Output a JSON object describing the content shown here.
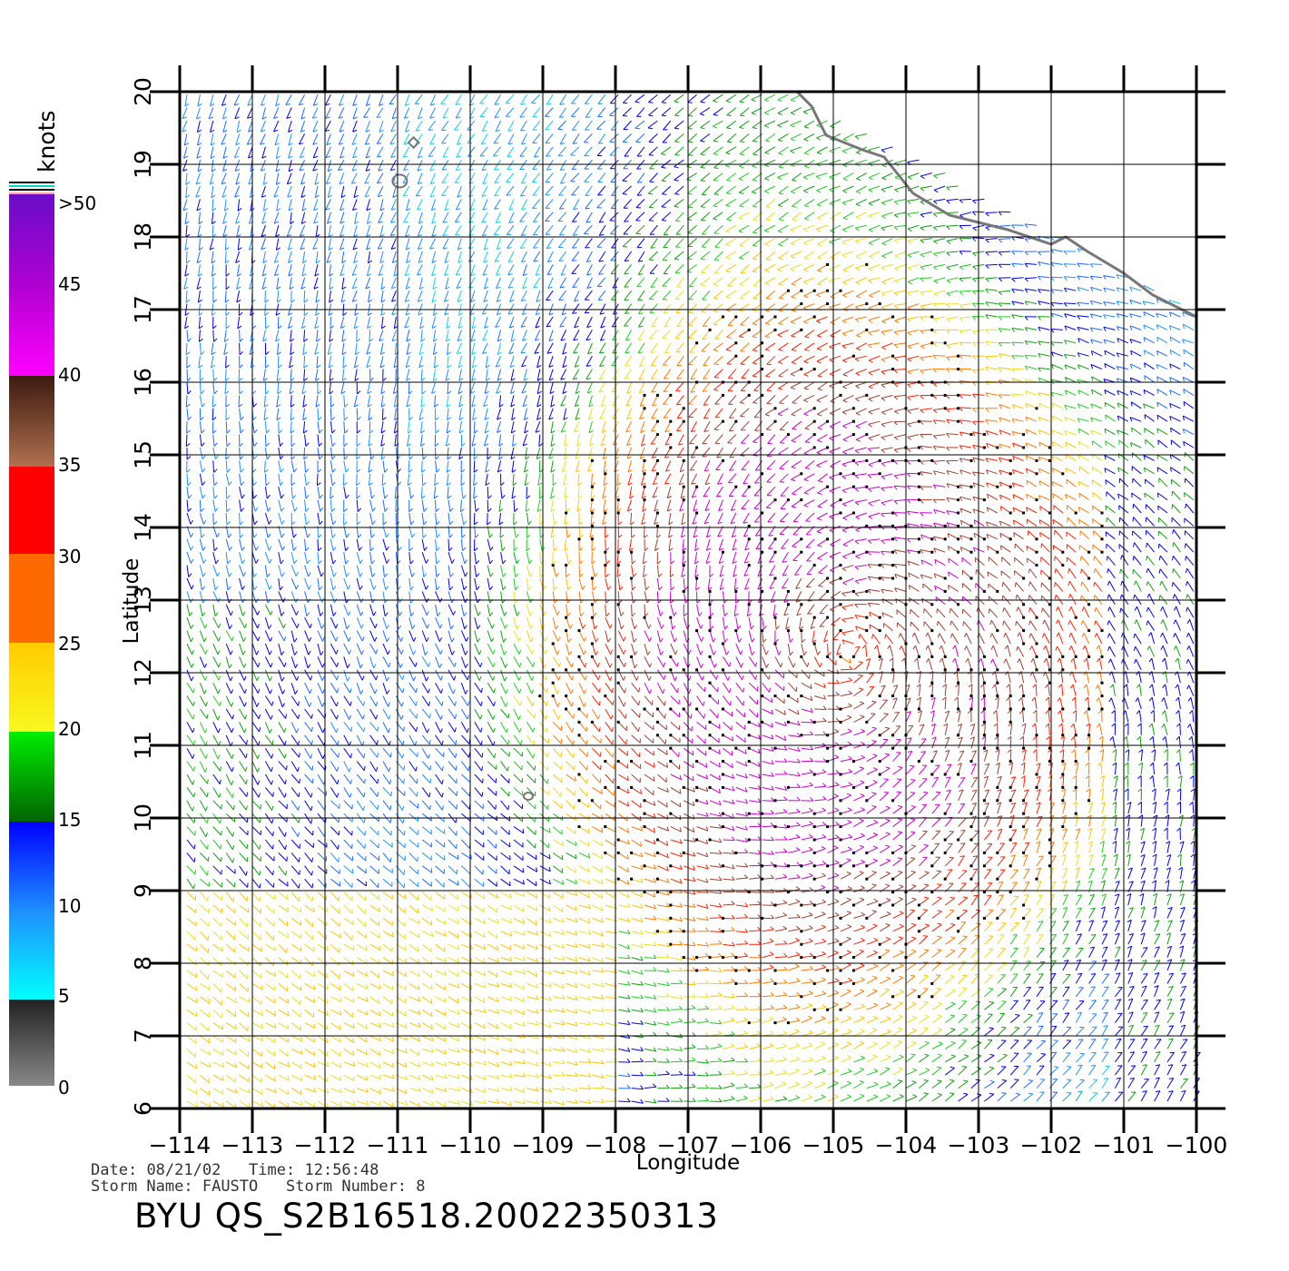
{
  "colorbar": {
    "unit_label": "knots",
    "tick_labels": [
      ">50",
      "45",
      "40",
      "35",
      "30",
      "25",
      "20",
      "15",
      "10",
      "5",
      "0"
    ],
    "colors": [
      "#6a0dc8",
      "#b000d0",
      "#ff00ff",
      "#3d1a10",
      "#b07050",
      "#ff0000",
      "#ff6a00",
      "#ffcc00",
      "#f8f820",
      "#00ee00",
      "#006400",
      "#0000ff",
      "#1e90ff",
      "#00ffff",
      "#222222",
      "#888888"
    ]
  },
  "map": {
    "xlabel": "Longitude",
    "ylabel": "Latitude",
    "lon_ticks": [
      "-114",
      "-113",
      "-112",
      "-111",
      "-110",
      "-109",
      "-108",
      "-107",
      "-106",
      "-105",
      "-104",
      "-103",
      "-102",
      "-101",
      "-100"
    ],
    "lat_ticks": [
      "6",
      "7",
      "8",
      "9",
      "10",
      "11",
      "12",
      "13",
      "14",
      "15",
      "16",
      "17",
      "18",
      "19",
      "20"
    ],
    "lon_range": [
      -114,
      -100
    ],
    "lat_range": [
      6,
      20
    ],
    "coastline_color": "#777777"
  },
  "footer": {
    "date_label": "Date:",
    "date": "08/21/02",
    "time_label": "Time:",
    "time": "12:56:48",
    "storm_name_label": "Storm Name:",
    "storm_name": "FAUSTO",
    "storm_number_label": "Storm Number:",
    "storm_number": "8",
    "title": "BYU QS_S2B16518.20022350313"
  }
}
